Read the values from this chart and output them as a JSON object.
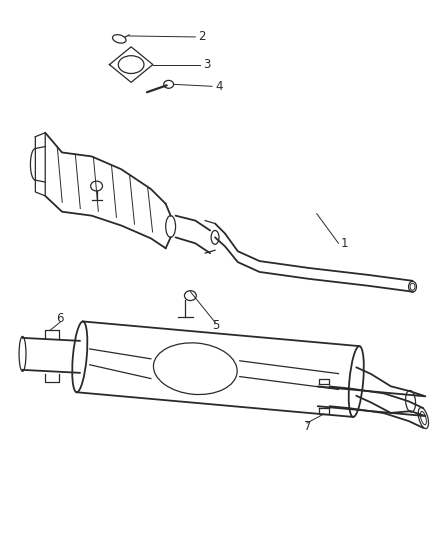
{
  "bg_color": "#ffffff",
  "line_color": "#2a2a2a",
  "label_color": "#2a2a2a",
  "figsize": [
    4.39,
    5.33
  ],
  "dpi": 100
}
